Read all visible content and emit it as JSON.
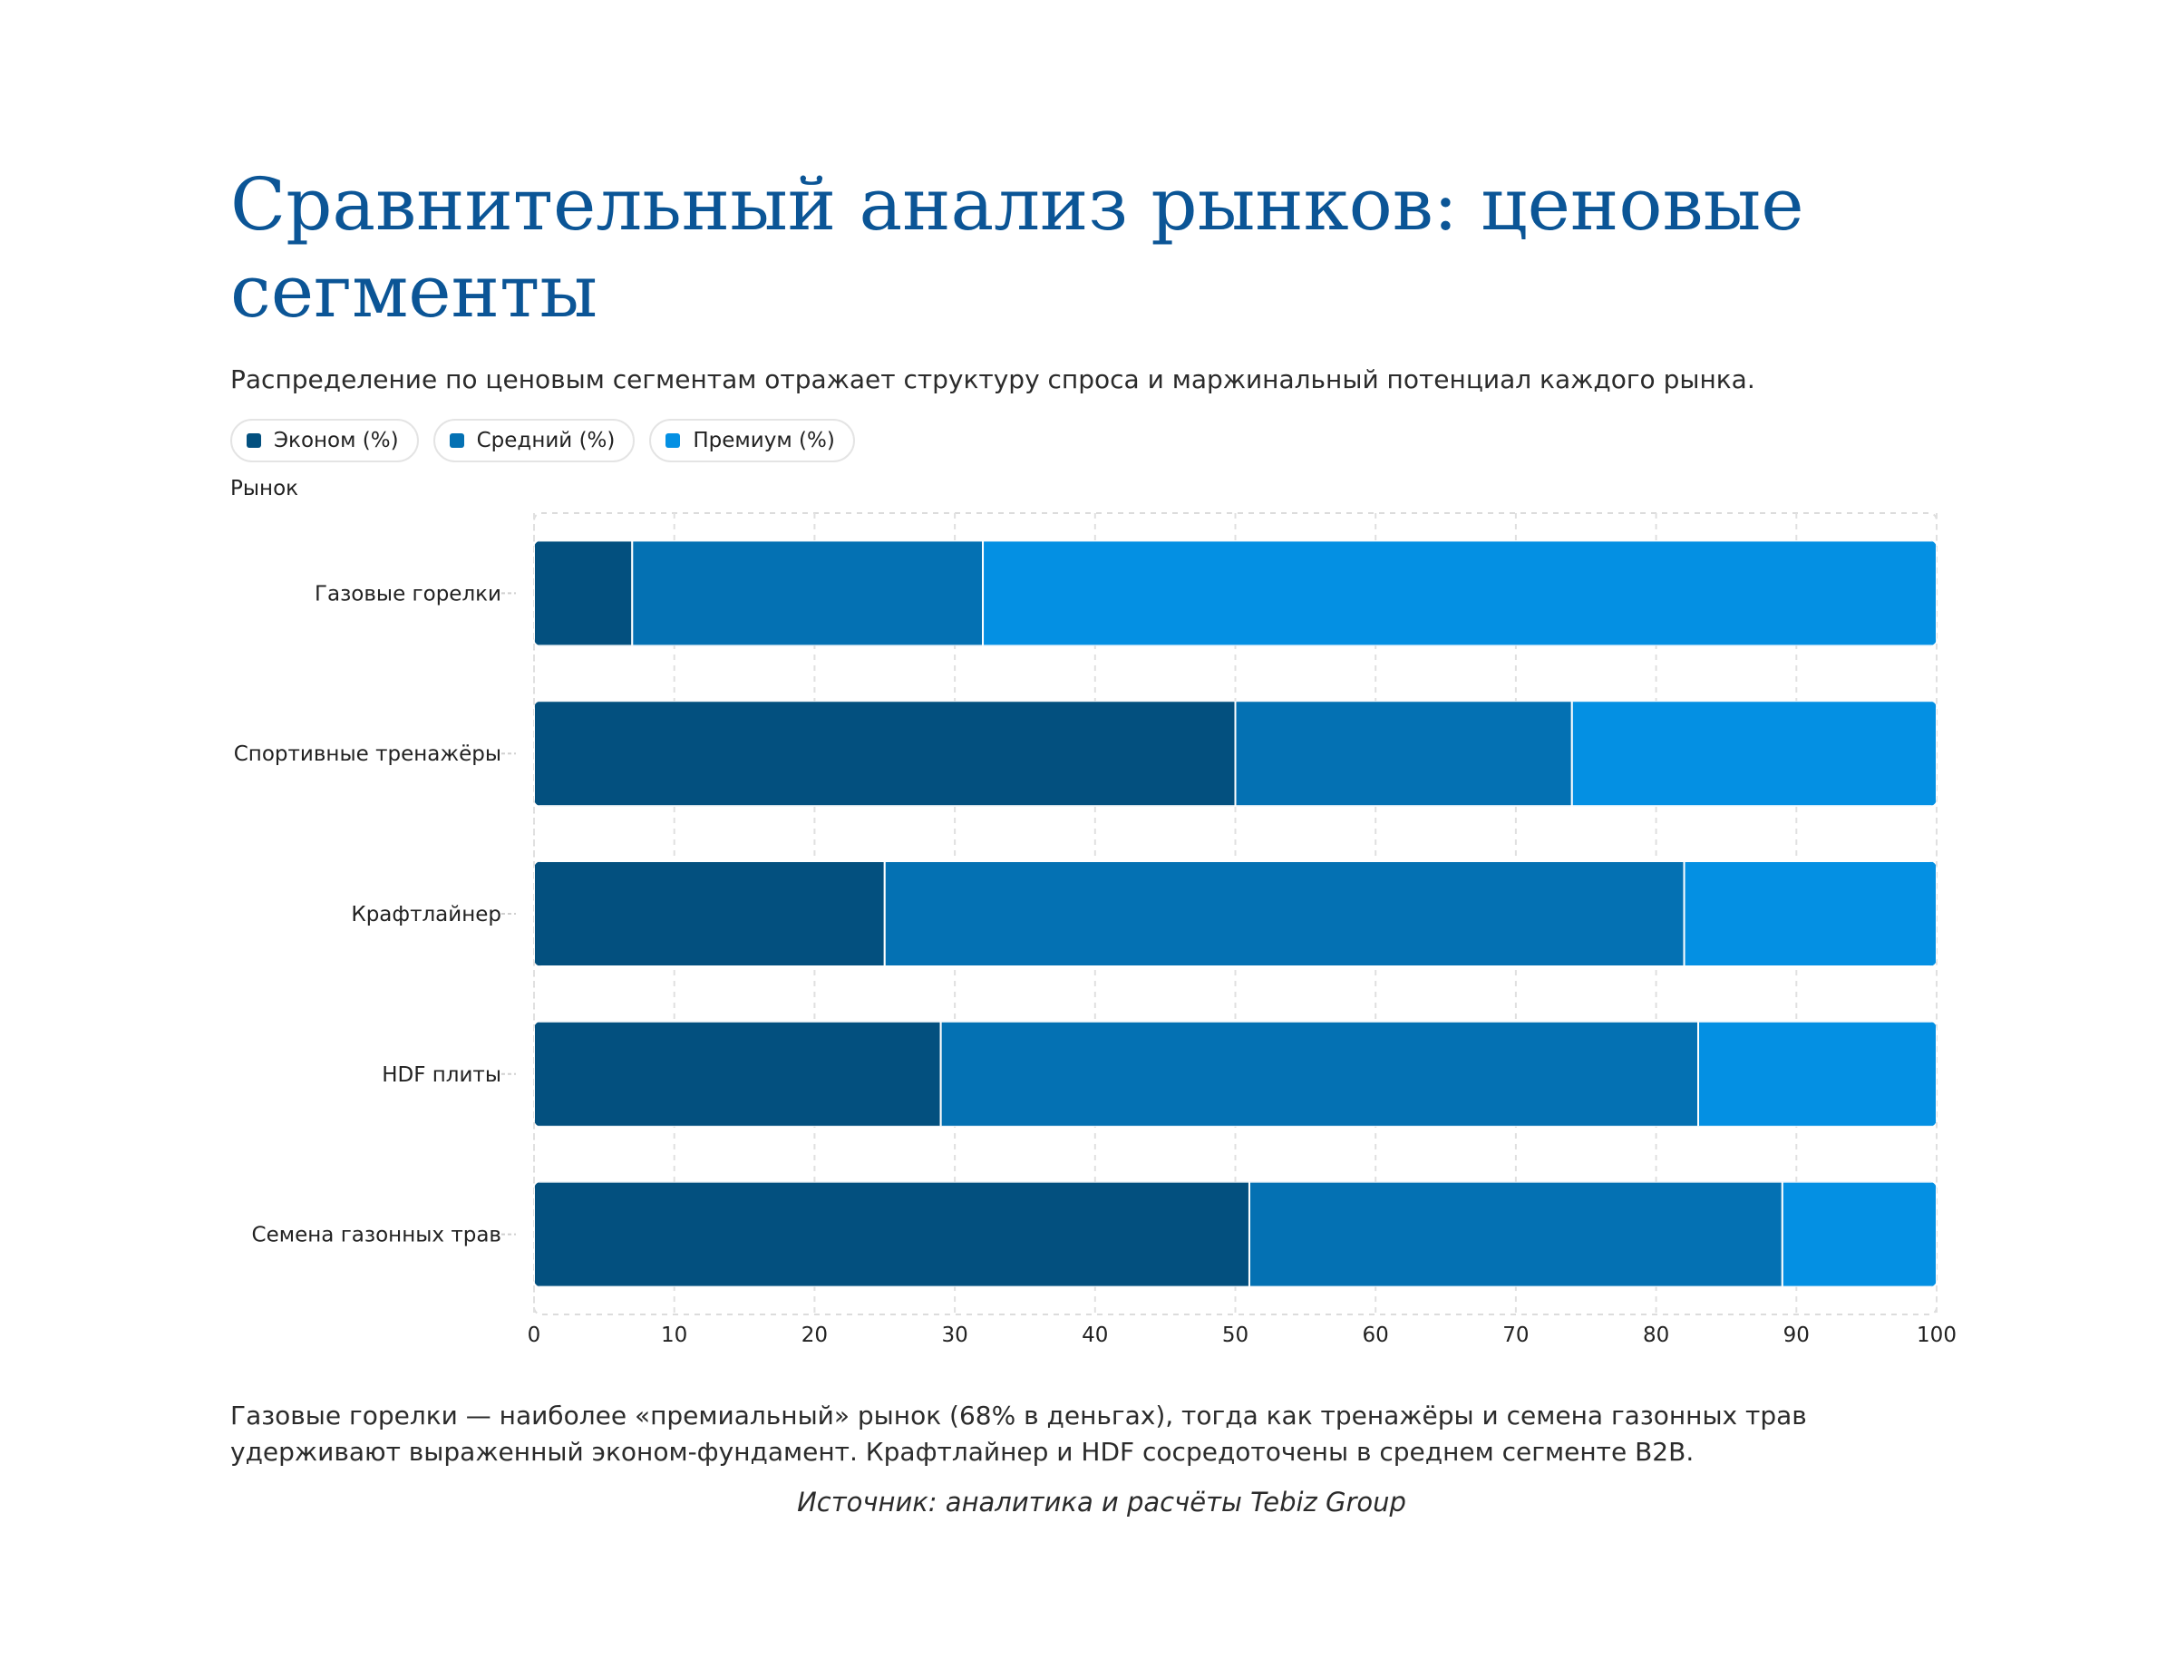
{
  "page": {
    "title": "Сравнительный анализ рынков: ценовые сегменты",
    "subtitle": "Распределение по ценовым сегментам отражает структуру спроса и маржинальный потенциал каждого рынка.",
    "note": "Газовые горелки — наиболее «премиальный» рынок (68% в деньгах), тогда как тренажёры и семена газонных трав удерживают выраженный эконом-фундамент. Крафтлайнер и HDF сосредоточены в среднем сегменте B2B.",
    "source": "Источник: аналитика и расчёты Tebiz Group"
  },
  "chart_data": {
    "type": "bar",
    "orientation": "horizontal",
    "stacked": true,
    "title": "Сравнительный анализ рынков: ценовые сегменты",
    "ylabel": "Рынок",
    "xlabel": "",
    "categories": [
      "Газовые горелки",
      "Спортивные тренажёры",
      "Крафтлайнер",
      "HDF плиты",
      "Семена газонных трав"
    ],
    "series": [
      {
        "name": "Эконом (%)",
        "color": "#03507f",
        "values": [
          7,
          50,
          25,
          29,
          51
        ]
      },
      {
        "name": "Средний (%)",
        "color": "#0471b3",
        "values": [
          25,
          24,
          57,
          54,
          38
        ]
      },
      {
        "name": "Премиум (%)",
        "color": "#0490e3",
        "values": [
          68,
          26,
          18,
          17,
          11
        ]
      }
    ],
    "xlim": [
      0,
      100
    ],
    "xticks": [
      0,
      10,
      20,
      30,
      40,
      50,
      60,
      70,
      80,
      90,
      100
    ],
    "grid": true,
    "legend_position": "top-left"
  }
}
